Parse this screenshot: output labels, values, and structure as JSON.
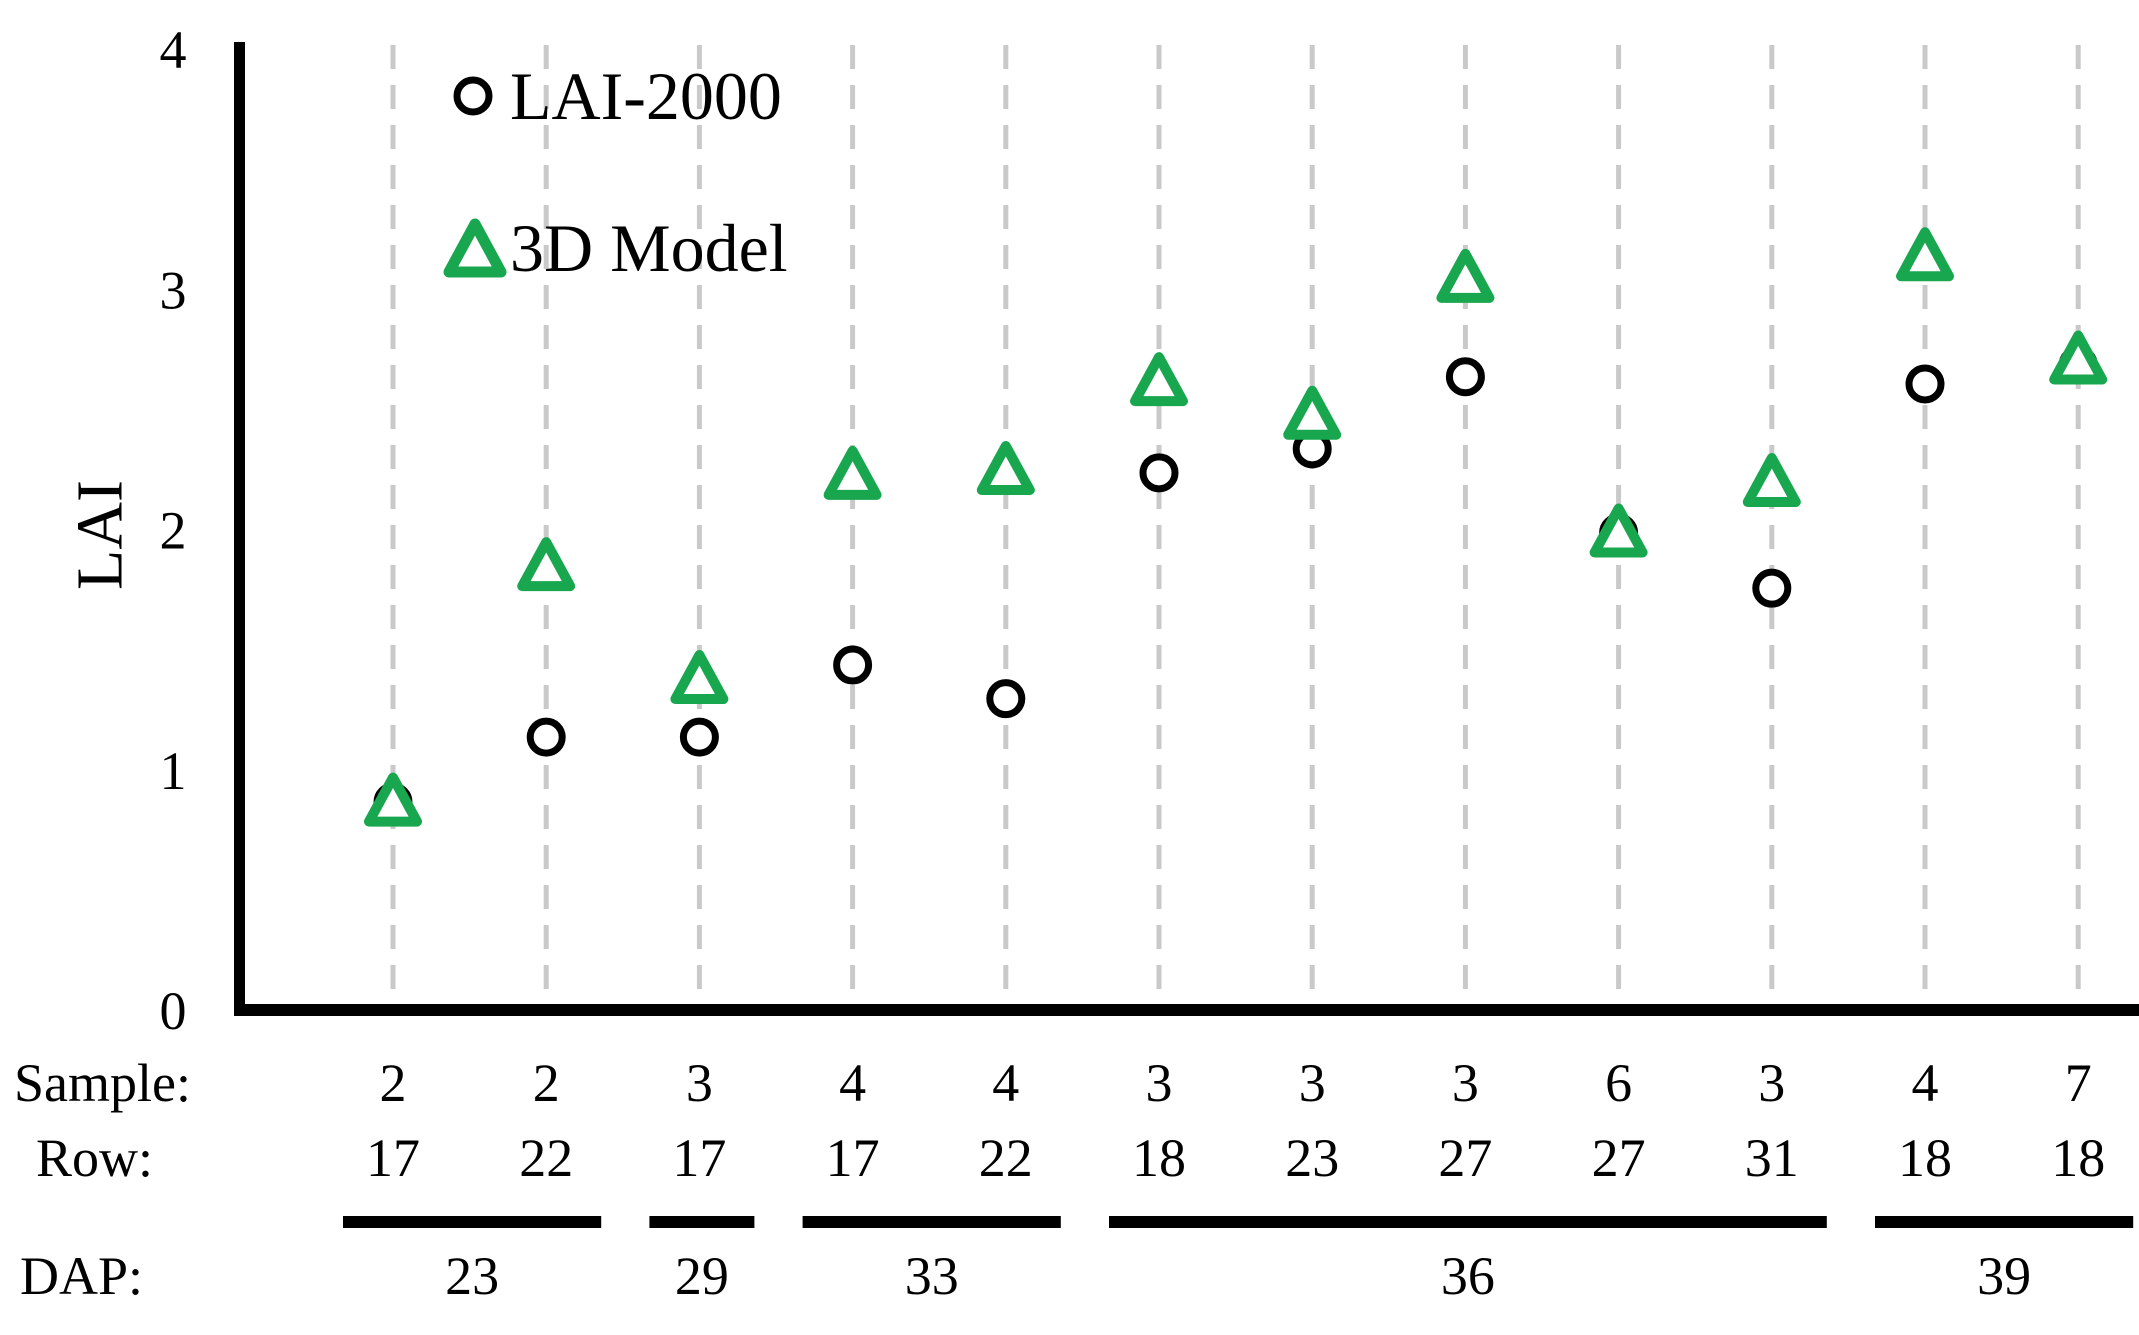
{
  "chart_data": {
    "type": "scatter",
    "title": "",
    "ylabel": "LAI",
    "ylim": [
      0,
      4
    ],
    "yticks": [
      0,
      1,
      2,
      3,
      4
    ],
    "grid": "vertical-dashed",
    "legend_position": "upper-left-inside",
    "legend": [
      {
        "name": "LAI-2000",
        "marker": "circle-icon",
        "color": "#000000"
      },
      {
        "name": "3D Model",
        "marker": "triangle-icon",
        "color": "#18A74E"
      }
    ],
    "x_annotation_headers": {
      "sample": "Sample:",
      "row": "Row:",
      "dap": "DAP:"
    },
    "points": [
      {
        "sample": "2",
        "row": "17",
        "lai2000": 0.87,
        "model3d": 0.88
      },
      {
        "sample": "2",
        "row": "22",
        "lai2000": 1.14,
        "model3d": 1.86
      },
      {
        "sample": "3",
        "row": "17",
        "lai2000": 1.14,
        "model3d": 1.39
      },
      {
        "sample": "4",
        "row": "17",
        "lai2000": 1.44,
        "model3d": 2.24
      },
      {
        "sample": "4",
        "row": "22",
        "lai2000": 1.3,
        "model3d": 2.26
      },
      {
        "sample": "3",
        "row": "18",
        "lai2000": 2.24,
        "model3d": 2.63
      },
      {
        "sample": "3",
        "row": "23",
        "lai2000": 2.34,
        "model3d": 2.49
      },
      {
        "sample": "3",
        "row": "27",
        "lai2000": 2.64,
        "model3d": 3.06
      },
      {
        "sample": "6",
        "row": "27",
        "lai2000": 1.99,
        "model3d": 2.0
      },
      {
        "sample": "3",
        "row": "31",
        "lai2000": 1.76,
        "model3d": 2.21
      },
      {
        "sample": "4",
        "row": "18",
        "lai2000": 2.61,
        "model3d": 3.15
      },
      {
        "sample": "7",
        "row": "18",
        "lai2000": 2.69,
        "model3d": 2.72
      }
    ],
    "dap_groups": [
      {
        "label": "23",
        "start": 0,
        "end": 1
      },
      {
        "label": "29",
        "start": 2,
        "end": 2
      },
      {
        "label": "33",
        "start": 3,
        "end": 4
      },
      {
        "label": "36",
        "start": 5,
        "end": 9
      },
      {
        "label": "39",
        "start": 10,
        "end": 11
      }
    ],
    "colors": {
      "measured": "#000000",
      "model": "#18A74E",
      "gridline": "#C9C9C9",
      "background": "#FFFFFF"
    }
  }
}
